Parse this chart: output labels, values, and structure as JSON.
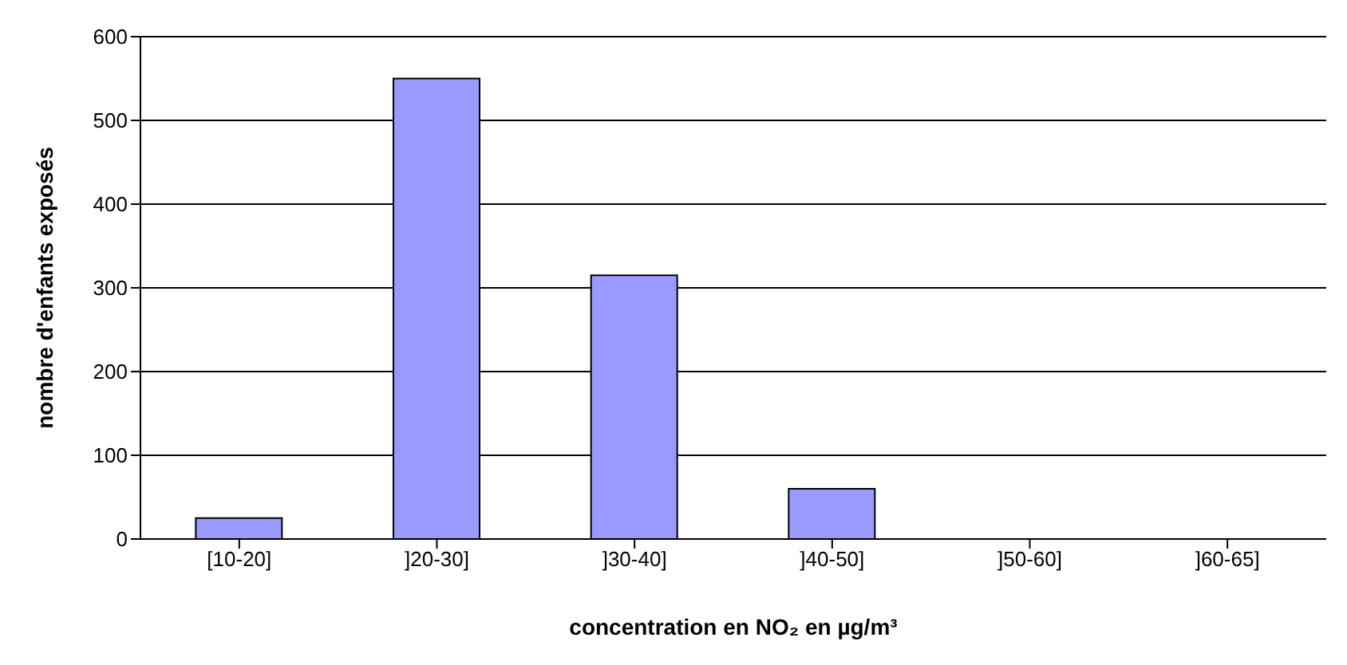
{
  "chart_data": {
    "type": "bar",
    "xlabel": "concentration en NO₂ en µg/m³",
    "ylabel": "nombre d'enfants exposés",
    "categories": [
      "[10-20]",
      "]20-30]",
      "]30-40]",
      "]40-50]",
      "]50-60]",
      "]60-65]"
    ],
    "values": [
      25,
      550,
      315,
      60,
      0,
      0
    ],
    "color": "#9999ff",
    "ylim": [
      0,
      600
    ],
    "yticks": [
      0,
      100,
      200,
      300,
      400,
      500,
      600
    ],
    "grid": "y"
  }
}
